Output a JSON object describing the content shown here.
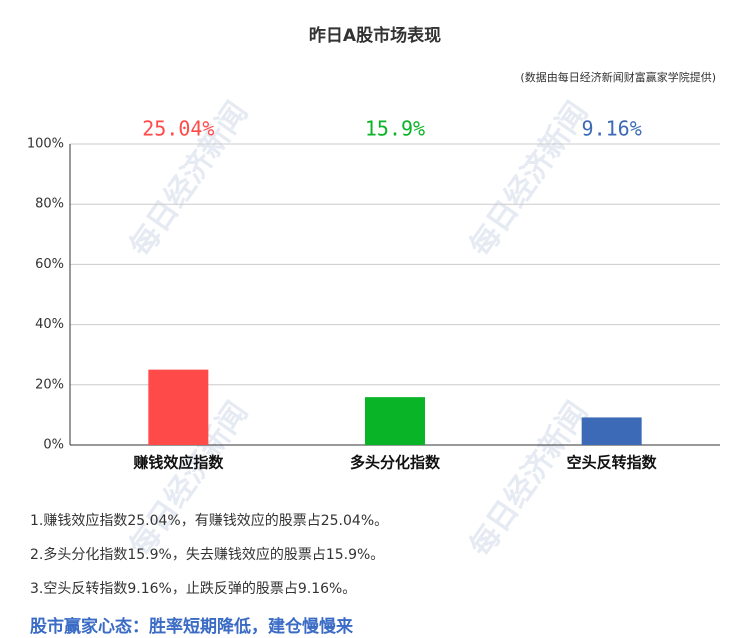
{
  "chart_data": {
    "type": "bar",
    "title": "昨日A股市场表现",
    "subtitle": "(数据由每日经济新闻财富赢家学院提供)",
    "categories": [
      "赚钱效应指数",
      "多头分化指数",
      "空头反转指数"
    ],
    "values": [
      25.04,
      15.9,
      9.16
    ],
    "value_labels": [
      "25.04%",
      "15.9%",
      "9.16%"
    ],
    "colors": [
      "#ff4a4a",
      "#0ab427",
      "#3d6ab6"
    ],
    "ylim": [
      0,
      100
    ],
    "yticks": [
      {
        "value": 0,
        "label": "0%"
      },
      {
        "value": 20,
        "label": "20%"
      },
      {
        "value": 40,
        "label": "40%"
      },
      {
        "value": 60,
        "label": "60%"
      },
      {
        "value": 80,
        "label": "80%"
      },
      {
        "value": 100,
        "label": "100%"
      }
    ],
    "grid": true
  },
  "watermark": "每日经济新闻",
  "notes": [
    "1.赚钱效应指数25.04%，有赚钱效应的股票占25.04%。",
    "2.多头分化指数15.9%，失去赚钱效应的股票占15.9%。",
    "3.空头反转指数9.16%，止跌反弹的股票占9.16%。"
  ],
  "headline": "股市赢家心态：胜率短期降低，建仓慢慢来"
}
